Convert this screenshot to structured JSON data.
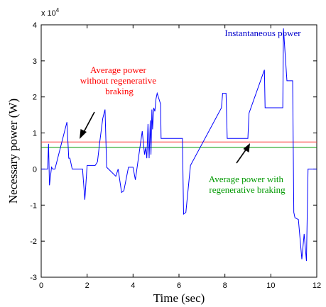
{
  "chart_data": {
    "type": "line",
    "xlabel": "Time (sec)",
    "ylabel": "Necessary power (W)",
    "xlim": [
      0,
      12
    ],
    "ylim": [
      -3,
      4
    ],
    "y_multiplier": "x 10",
    "y_multiplier_exp": "4",
    "xticks": [
      "0",
      "2",
      "4",
      "6",
      "8",
      "10",
      "12"
    ],
    "yticks": [
      "-3",
      "-2",
      "-1",
      "0",
      "1",
      "2",
      "3",
      "4"
    ],
    "grid": false,
    "series": [
      {
        "name": "Instantaneous power",
        "color": "#0000ff",
        "x": [
          0,
          0.28,
          0.32,
          0.36,
          0.45,
          0.5,
          0.6,
          1.12,
          1.2,
          1.25,
          1.35,
          1.8,
          1.9,
          2.0,
          2.35,
          2.45,
          2.55,
          2.68,
          2.78,
          2.85,
          3.25,
          3.35,
          3.5,
          3.6,
          3.8,
          4.0,
          4.1,
          4.4,
          4.5,
          4.55,
          4.6,
          4.65,
          4.7,
          4.75,
          4.78,
          4.82,
          4.85,
          4.9,
          4.95,
          5.0,
          5.05,
          5.2,
          5.22,
          6.15,
          6.2,
          6.3,
          6.5,
          7.85,
          7.9,
          8.05,
          8.1,
          9.0,
          9.05,
          9.72,
          9.75,
          10.52,
          10.55,
          10.7,
          10.95,
          11.0,
          11.05,
          11.2,
          11.35,
          11.45,
          11.55,
          11.62,
          11.7,
          11.75,
          11.8,
          12.0
        ],
        "y": [
          0,
          0,
          0.7,
          -0.45,
          0.05,
          0,
          0,
          1.3,
          0.3,
          0.3,
          0,
          0,
          -0.85,
          0.1,
          0.1,
          0.2,
          0.75,
          1.4,
          1.65,
          0.05,
          -0.2,
          0,
          -0.65,
          -0.6,
          0.05,
          0.05,
          -0.3,
          1.05,
          0.4,
          0.6,
          0.3,
          1.25,
          0.3,
          1.35,
          0.4,
          1.65,
          1.1,
          1.7,
          1.6,
          1.95,
          2.1,
          1.8,
          0.85,
          0.85,
          -1.25,
          -1.2,
          0.1,
          1.7,
          2.1,
          2.1,
          0.85,
          0.85,
          1.55,
          2.75,
          1.7,
          1.7,
          3.9,
          2.45,
          2.45,
          -1.2,
          -1.35,
          -1.4,
          -2.5,
          -1.8,
          -2.55,
          0,
          0,
          0,
          0,
          0
        ]
      },
      {
        "name": "Average power without regenerative braking",
        "color": "#ff3333",
        "x": [
          0,
          12
        ],
        "y": [
          0.75,
          0.75
        ]
      },
      {
        "name": "Average power with regenerative braking",
        "color": "#009900",
        "x": [
          0,
          12
        ],
        "y": [
          0.6,
          0.6
        ]
      }
    ],
    "annotations": [
      {
        "lines": [
          "Instantaneous power"
        ],
        "color": "#0000cc"
      },
      {
        "lines": [
          "Average power",
          "without regenerative",
          "braking"
        ],
        "color": "#ff0000"
      },
      {
        "lines": [
          "Average power with",
          "regenerative braking"
        ],
        "color": "#009900"
      }
    ]
  }
}
